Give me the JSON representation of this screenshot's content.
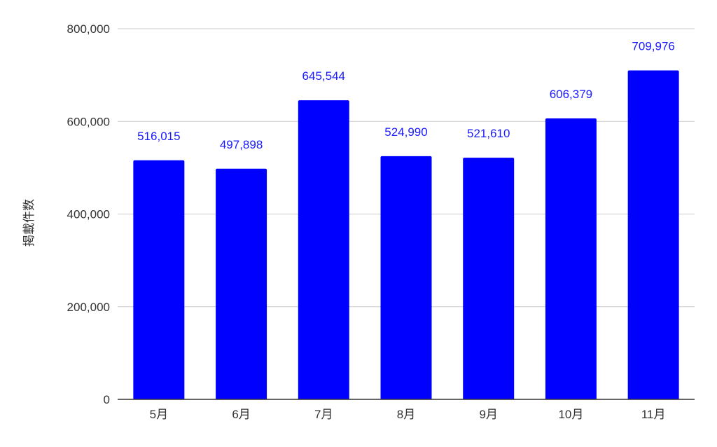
{
  "chart_data": {
    "type": "bar",
    "title": "",
    "xlabel": "",
    "ylabel": "掲載件数",
    "categories": [
      "5月",
      "6月",
      "7月",
      "8月",
      "9月",
      "10月",
      "11月"
    ],
    "values": [
      516015,
      497898,
      645544,
      524990,
      521610,
      606379,
      709976
    ],
    "data_labels": [
      "516,015",
      "497,898",
      "645,544",
      "524,990",
      "521,610",
      "606,379",
      "709,976"
    ],
    "ylim": [
      0,
      800000
    ],
    "yticks": [
      0,
      200000,
      400000,
      600000,
      800000
    ],
    "ytick_labels": [
      "0",
      "200,000",
      "400,000",
      "600,000",
      "800,000"
    ],
    "grid": true,
    "legend": "none",
    "colors": {
      "bar": "#0000ff",
      "data_label": "#1a1aff",
      "grid": "#cccccc",
      "axis": "#333333",
      "text": "#333333"
    }
  }
}
